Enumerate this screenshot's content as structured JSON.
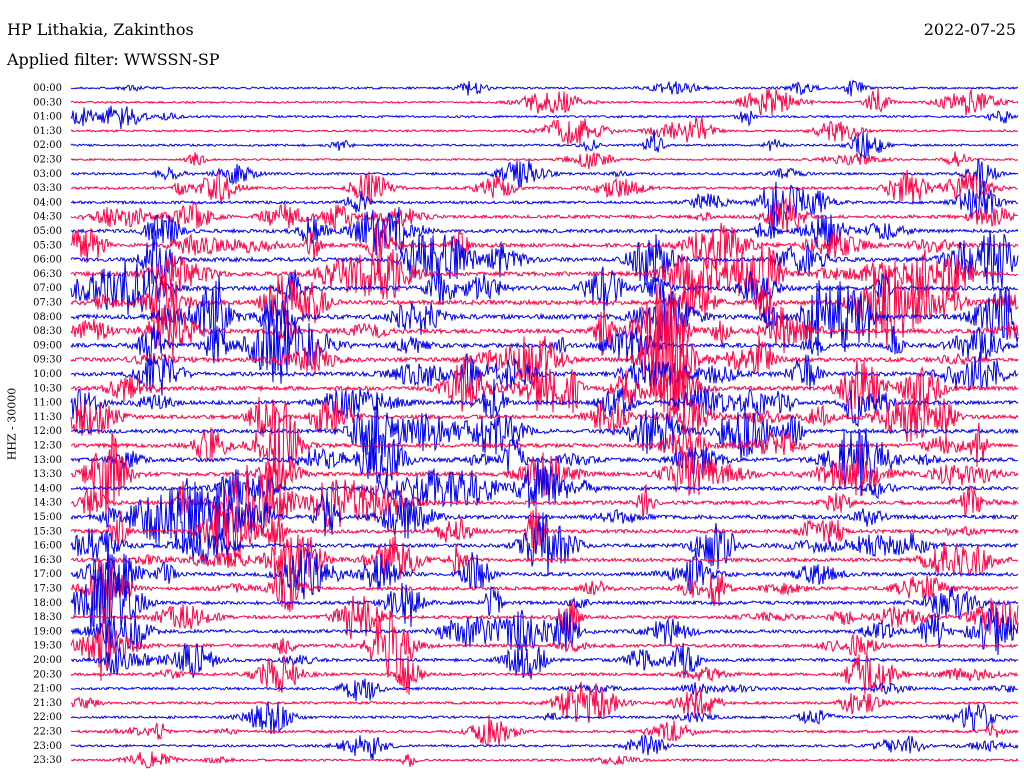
{
  "header": {
    "station": "HP Lithakia, Zakinthos",
    "date": "2022-07-25",
    "filter": "Applied filter: WWSSN-SP"
  },
  "axis": {
    "channel": "HHZ - 30000"
  },
  "colors": {
    "trace_even": "#0000ee",
    "trace_odd": "#ff0044",
    "background": "#ffffff"
  },
  "chart_data": {
    "type": "helicorder",
    "row_labels": [
      "00:00",
      "00:30",
      "01:00",
      "01:30",
      "02:00",
      "02:30",
      "03:00",
      "03:30",
      "04:00",
      "04:30",
      "05:00",
      "05:30",
      "06:00",
      "06:30",
      "07:00",
      "07:30",
      "08:00",
      "08:30",
      "09:00",
      "09:30",
      "10:00",
      "10:30",
      "11:00",
      "11:30",
      "12:00",
      "12:30",
      "13:00",
      "13:30",
      "14:00",
      "14:30",
      "15:00",
      "15:30",
      "16:00",
      "16:30",
      "17:00",
      "17:30",
      "18:00",
      "18:30",
      "19:00",
      "19:30",
      "20:00",
      "20:30",
      "21:00",
      "21:30",
      "22:00",
      "22:30",
      "23:00",
      "23:30"
    ],
    "row_interval_minutes": 30,
    "activity_per_row": [
      0.25,
      0.2,
      0.3,
      0.25,
      0.3,
      0.2,
      0.35,
      0.45,
      0.5,
      0.6,
      0.7,
      0.8,
      0.85,
      0.9,
      0.95,
      1.0,
      1.0,
      0.95,
      0.9,
      0.9,
      0.9,
      0.85,
      0.85,
      0.8,
      0.8,
      0.8,
      0.85,
      0.85,
      0.8,
      0.8,
      0.8,
      0.75,
      0.75,
      0.75,
      0.75,
      0.7,
      0.7,
      0.65,
      0.65,
      0.6,
      0.6,
      0.5,
      0.45,
      0.4,
      0.4,
      0.4,
      0.35,
      0.3
    ],
    "colors_alternate": [
      "blue",
      "red"
    ]
  }
}
